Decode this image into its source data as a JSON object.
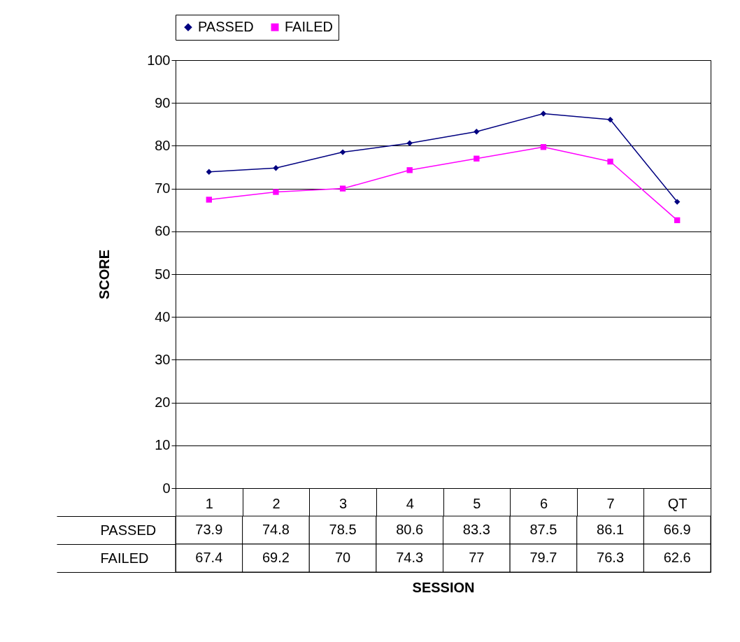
{
  "chart_data": {
    "type": "line",
    "xlabel": "SESSION",
    "ylabel": "SCORE",
    "categories": [
      "1",
      "2",
      "3",
      "4",
      "5",
      "6",
      "7",
      "QT"
    ],
    "series": [
      {
        "name": "PASSED",
        "color": "#000080",
        "marker": "diamond",
        "values": [
          73.9,
          74.8,
          78.5,
          80.6,
          83.3,
          87.5,
          86.1,
          66.9
        ]
      },
      {
        "name": "FAILED",
        "color": "#ff00ff",
        "marker": "square",
        "values": [
          67.4,
          69.2,
          70,
          74.3,
          77,
          79.7,
          76.3,
          62.6
        ]
      }
    ],
    "ylim": [
      0,
      100
    ],
    "yticks": [
      0,
      10,
      20,
      30,
      40,
      50,
      60,
      70,
      80,
      90,
      100
    ],
    "grid": "y",
    "legend": "top",
    "data_labels": true
  }
}
